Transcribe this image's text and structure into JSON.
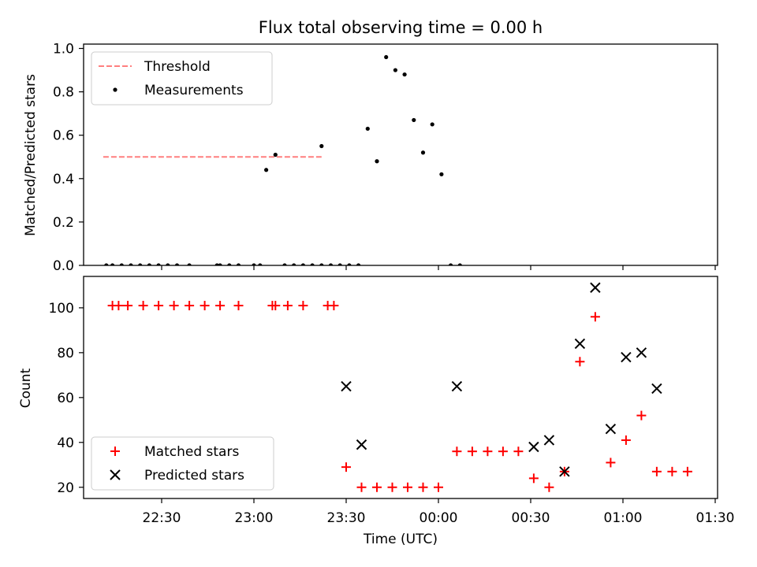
{
  "chart_data": [
    {
      "type": "scatter",
      "title": "Flux total observing time = 0.00 h",
      "xlabel": "",
      "ylabel": "Matched/Predicted stars",
      "ylim": [
        0,
        1.02
      ],
      "yticks": [
        "0.0",
        "0.2",
        "0.4",
        "0.6",
        "0.8",
        "1.0"
      ],
      "grid": false,
      "legend_position": "top-left",
      "series": [
        {
          "name": "Threshold",
          "kind": "dashed-line",
          "color": "#ff7f7f",
          "x": [
            "22:11",
            "23:22"
          ],
          "y": [
            0.5,
            0.5
          ]
        },
        {
          "name": "Measurements",
          "kind": "dots",
          "color": "#000000",
          "points": [
            [
              "22:12",
              0.0
            ],
            [
              "22:14",
              0.0
            ],
            [
              "22:17",
              0.0
            ],
            [
              "22:20",
              0.0
            ],
            [
              "22:23",
              0.0
            ],
            [
              "22:26",
              0.0
            ],
            [
              "22:29",
              0.0
            ],
            [
              "22:32",
              0.0
            ],
            [
              "22:35",
              0.0
            ],
            [
              "22:39",
              0.0
            ],
            [
              "22:48",
              0.0
            ],
            [
              "22:49",
              0.0
            ],
            [
              "22:52",
              0.0
            ],
            [
              "22:55",
              0.0
            ],
            [
              "23:00",
              0.0
            ],
            [
              "23:02",
              0.0
            ],
            [
              "23:04",
              0.44
            ],
            [
              "23:07",
              0.51
            ],
            [
              "23:10",
              0.0
            ],
            [
              "23:13",
              0.0
            ],
            [
              "23:16",
              0.0
            ],
            [
              "23:19",
              0.0
            ],
            [
              "23:22",
              0.0
            ],
            [
              "23:22",
              0.55
            ],
            [
              "23:25",
              0.0
            ],
            [
              "23:28",
              0.0
            ],
            [
              "23:31",
              0.0
            ],
            [
              "23:34",
              0.0
            ],
            [
              "23:37",
              0.63
            ],
            [
              "23:40",
              0.48
            ],
            [
              "23:43",
              0.96
            ],
            [
              "23:46",
              0.9
            ],
            [
              "23:49",
              0.88
            ],
            [
              "23:52",
              0.67
            ],
            [
              "23:55",
              0.52
            ],
            [
              "23:58",
              0.65
            ],
            [
              "00:01",
              0.42
            ],
            [
              "00:04",
              0.0
            ],
            [
              "00:07",
              0.0
            ]
          ]
        }
      ]
    },
    {
      "type": "scatter",
      "xlabel": "Time (UTC)",
      "ylabel": "Count",
      "ylim": [
        15,
        114
      ],
      "yticks": [
        "20",
        "40",
        "60",
        "80",
        "100"
      ],
      "xticks": [
        "22:30",
        "23:00",
        "23:30",
        "00:00",
        "00:30",
        "01:00",
        "01:30"
      ],
      "grid": false,
      "legend_position": "bottom-left",
      "series": [
        {
          "name": "Matched stars",
          "marker": "+",
          "color": "#ff0000",
          "points": [
            [
              "22:14",
              101
            ],
            [
              "22:16",
              101
            ],
            [
              "22:19",
              101
            ],
            [
              "22:24",
              101
            ],
            [
              "22:29",
              101
            ],
            [
              "22:34",
              101
            ],
            [
              "22:39",
              101
            ],
            [
              "22:44",
              101
            ],
            [
              "22:49",
              101
            ],
            [
              "22:55",
              101
            ],
            [
              "23:06",
              101
            ],
            [
              "23:07",
              101
            ],
            [
              "23:11",
              101
            ],
            [
              "23:16",
              101
            ],
            [
              "23:24",
              101
            ],
            [
              "23:26",
              101
            ],
            [
              "23:30",
              29
            ],
            [
              "23:35",
              20
            ],
            [
              "23:40",
              20
            ],
            [
              "23:45",
              20
            ],
            [
              "23:50",
              20
            ],
            [
              "23:55",
              20
            ],
            [
              "00:00",
              20
            ],
            [
              "00:06",
              36
            ],
            [
              "00:11",
              36
            ],
            [
              "00:16",
              36
            ],
            [
              "00:21",
              36
            ],
            [
              "00:26",
              36
            ],
            [
              "00:31",
              24
            ],
            [
              "00:36",
              20
            ],
            [
              "00:41",
              27
            ],
            [
              "00:46",
              76
            ],
            [
              "00:51",
              96
            ],
            [
              "00:56",
              31
            ],
            [
              "01:01",
              41
            ],
            [
              "01:06",
              52
            ],
            [
              "01:11",
              27
            ],
            [
              "01:16",
              27
            ],
            [
              "01:21",
              27
            ]
          ]
        },
        {
          "name": "Predicted stars",
          "marker": "x",
          "color": "#000000",
          "points": [
            [
              "23:30",
              65
            ],
            [
              "23:35",
              39
            ],
            [
              "00:06",
              65
            ],
            [
              "00:31",
              38
            ],
            [
              "00:36",
              41
            ],
            [
              "00:41",
              27
            ],
            [
              "00:46",
              84
            ],
            [
              "00:51",
              109
            ],
            [
              "00:56",
              46
            ],
            [
              "01:01",
              78
            ],
            [
              "01:06",
              80
            ],
            [
              "01:11",
              64
            ]
          ]
        }
      ]
    }
  ]
}
